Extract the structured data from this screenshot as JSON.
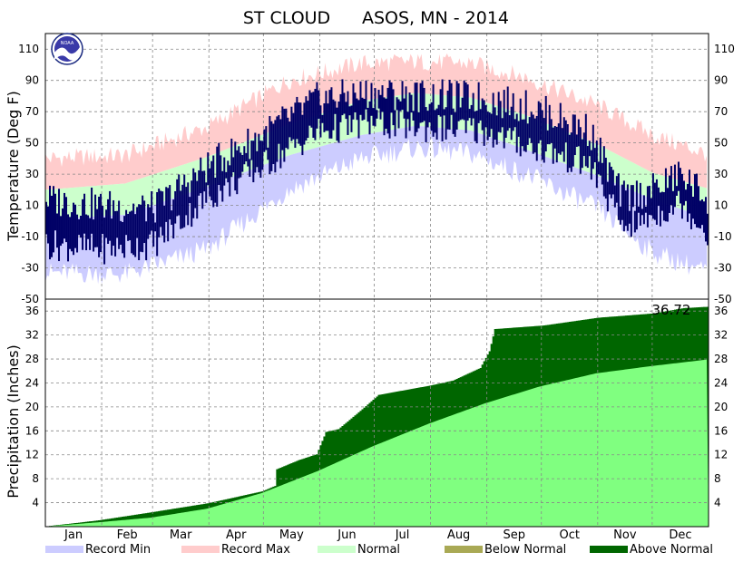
{
  "chart_data": [
    {
      "type": "area",
      "title_station": "ST CLOUD",
      "title_rest": "ASOS, MN - 2014",
      "ylabel": "Temperature (Deg F)",
      "ylim": [
        -50,
        120
      ],
      "yticks": [
        "110",
        "90",
        "70",
        "50",
        "30",
        "10",
        "-10",
        "-30",
        "-50"
      ],
      "grid": true,
      "months": [
        "Jan",
        "Feb",
        "Mar",
        "Apr",
        "May",
        "Jun",
        "Jul",
        "Aug",
        "Sep",
        "Oct",
        "Nov",
        "Dec"
      ],
      "x_unit": "day of year",
      "record_max_profile": [
        [
          1,
          40
        ],
        [
          45,
          42
        ],
        [
          90,
          60
        ],
        [
          135,
          90
        ],
        [
          175,
          101
        ],
        [
          205,
          102
        ],
        [
          235,
          101
        ],
        [
          265,
          92
        ],
        [
          305,
          74
        ],
        [
          335,
          55
        ],
        [
          365,
          43
        ]
      ],
      "normal_high_profile": [
        [
          1,
          20
        ],
        [
          45,
          24
        ],
        [
          90,
          41
        ],
        [
          135,
          62
        ],
        [
          175,
          77
        ],
        [
          205,
          82
        ],
        [
          235,
          79
        ],
        [
          265,
          68
        ],
        [
          305,
          49
        ],
        [
          335,
          31
        ],
        [
          365,
          21
        ]
      ],
      "normal_low_profile": [
        [
          1,
          1
        ],
        [
          45,
          4
        ],
        [
          90,
          22
        ],
        [
          135,
          42
        ],
        [
          175,
          55
        ],
        [
          205,
          61
        ],
        [
          235,
          58
        ],
        [
          265,
          46
        ],
        [
          305,
          29
        ],
        [
          335,
          14
        ],
        [
          365,
          2
        ]
      ],
      "record_min_profile": [
        [
          1,
          -33
        ],
        [
          45,
          -34
        ],
        [
          90,
          -18
        ],
        [
          135,
          20
        ],
        [
          175,
          40
        ],
        [
          205,
          47
        ],
        [
          235,
          43
        ],
        [
          265,
          30
        ],
        [
          305,
          8
        ],
        [
          335,
          -20
        ],
        [
          365,
          -32
        ]
      ],
      "observed_high_profile": [
        [
          1,
          14
        ],
        [
          30,
          10
        ],
        [
          60,
          8
        ],
        [
          90,
          35
        ],
        [
          120,
          55
        ],
        [
          150,
          78
        ],
        [
          180,
          82
        ],
        [
          210,
          80
        ],
        [
          240,
          79
        ],
        [
          270,
          72
        ],
        [
          300,
          58
        ],
        [
          318,
          15
        ],
        [
          335,
          20
        ],
        [
          350,
          30
        ],
        [
          365,
          15
        ]
      ],
      "observed_low_profile": [
        [
          1,
          -15
        ],
        [
          30,
          -18
        ],
        [
          60,
          -15
        ],
        [
          90,
          15
        ],
        [
          120,
          35
        ],
        [
          150,
          57
        ],
        [
          180,
          63
        ],
        [
          210,
          60
        ],
        [
          240,
          58
        ],
        [
          270,
          47
        ],
        [
          300,
          36
        ],
        [
          318,
          -3
        ],
        [
          335,
          3
        ],
        [
          350,
          12
        ],
        [
          365,
          -7
        ]
      ]
    },
    {
      "type": "area",
      "ylabel": "Precipitation (Inches)",
      "ylim": [
        0,
        38
      ],
      "yticks": [
        "36",
        "32",
        "28",
        "24",
        "20",
        "16",
        "12",
        "8",
        "4"
      ],
      "grid": true,
      "total_label": "36.72",
      "total": 36.72,
      "normal_end": 27.9,
      "x_unit": "day of year",
      "observed_cumulative": [
        [
          1,
          0.05
        ],
        [
          20,
          0.7
        ],
        [
          31,
          1.1
        ],
        [
          59,
          2.4
        ],
        [
          90,
          3.9
        ],
        [
          105,
          4.9
        ],
        [
          120,
          5.9
        ],
        [
          127,
          6.8
        ],
        [
          128,
          9.6
        ],
        [
          140,
          11.1
        ],
        [
          150,
          12.1
        ],
        [
          155,
          15.8
        ],
        [
          162,
          16.3
        ],
        [
          175,
          19.6
        ],
        [
          184,
          22.0
        ],
        [
          213,
          23.6
        ],
        [
          225,
          24.4
        ],
        [
          240,
          26.5
        ],
        [
          245,
          29.3
        ],
        [
          248,
          33.0
        ],
        [
          275,
          33.6
        ],
        [
          305,
          34.9
        ],
        [
          335,
          35.6
        ],
        [
          352,
          36.5
        ],
        [
          365,
          36.72
        ]
      ],
      "normal_cumulative": [
        [
          1,
          0.03
        ],
        [
          31,
          0.75
        ],
        [
          59,
          1.5
        ],
        [
          90,
          3.0
        ],
        [
          120,
          5.6
        ],
        [
          151,
          9.3
        ],
        [
          181,
          13.4
        ],
        [
          212,
          17.2
        ],
        [
          243,
          20.6
        ],
        [
          273,
          23.4
        ],
        [
          304,
          25.6
        ],
        [
          334,
          26.8
        ],
        [
          365,
          27.9
        ]
      ]
    }
  ],
  "legend": [
    {
      "label": "Record Min",
      "color": "#ccccff"
    },
    {
      "label": "Record Max",
      "color": "#ffcccc"
    },
    {
      "label": "Normal",
      "color": "#ccffcc"
    },
    {
      "label": "Below Normal",
      "color": "#a9a955"
    },
    {
      "label": "Above Normal",
      "color": "#006600"
    }
  ],
  "logo_text": "NOAA",
  "colors": {
    "observed_temp": "#000066",
    "normal_precip": "#80ff80",
    "above_normal": "#006600"
  }
}
